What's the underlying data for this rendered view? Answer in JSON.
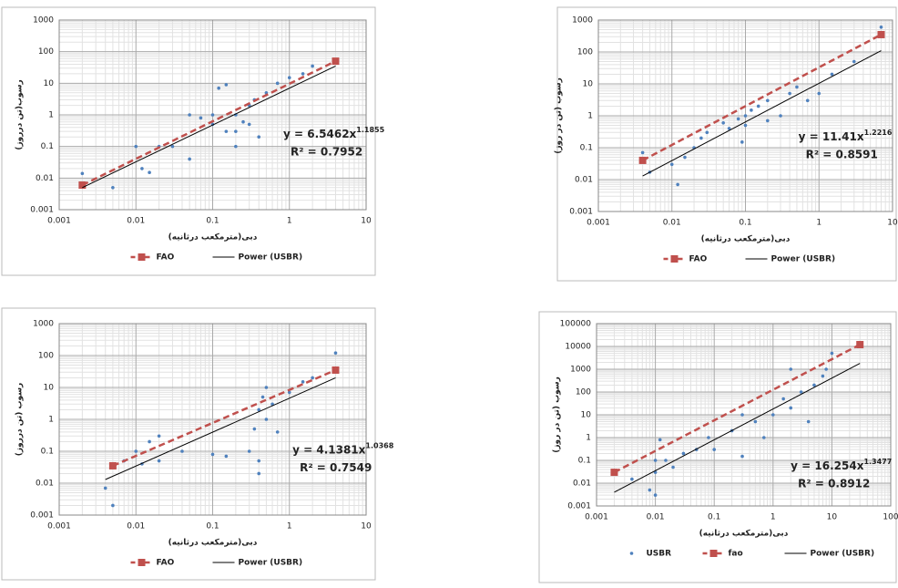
{
  "chart_data": [
    {
      "type": "scatter",
      "log": true,
      "grid": true,
      "legend": "bottom",
      "xlabel": "دبی(مترمکعب درثانیه)",
      "ylabel": "رسوب(تن درروز)",
      "xlim": [
        0.001,
        10
      ],
      "ylim": [
        0.001,
        1000
      ],
      "xticks": [
        0.001,
        0.01,
        0.1,
        1,
        10
      ],
      "yticks": [
        0.001,
        0.01,
        0.1,
        1,
        10,
        100,
        1000
      ],
      "points": {
        "color": "#4f81bd",
        "x": [
          0.002,
          0.005,
          0.01,
          0.012,
          0.015,
          0.02,
          0.03,
          0.05,
          0.05,
          0.07,
          0.1,
          0.12,
          0.15,
          0.15,
          0.2,
          0.2,
          0.25,
          0.3,
          0.35,
          0.4,
          0.5,
          0.7,
          1,
          1.5,
          2,
          0.3,
          0.2,
          0.1
        ],
        "values": [
          0.014,
          0.005,
          0.1,
          0.02,
          0.015,
          0.1,
          0.1,
          0.04,
          1,
          0.8,
          0.5,
          7,
          9,
          0.3,
          0.1,
          1,
          0.6,
          2,
          3,
          0.2,
          5,
          10,
          15,
          20,
          35,
          0.5,
          0.3,
          1
        ]
      },
      "series": [
        {
          "name": "FAO",
          "color": "#c0504d",
          "dash": true,
          "marker": "square",
          "x": [
            0.002,
            4
          ],
          "values": [
            0.006,
            50
          ]
        },
        {
          "name": "Power (USBR)",
          "color": "#000000",
          "x": [
            0.002,
            4
          ],
          "values": [
            0.005,
            35
          ]
        }
      ],
      "equation": {
        "text": "y = 6.5462x",
        "exponent": "1.1855"
      },
      "r2": "R² = 0.7952"
    },
    {
      "type": "scatter",
      "log": true,
      "grid": true,
      "legend": "bottom",
      "xlabel": "دبی(مترمکعب درثانیه)",
      "ylabel": "رسوب (تن در روز)",
      "xlim": [
        0.001,
        10
      ],
      "ylim": [
        0.001,
        1000
      ],
      "xticks": [
        0.001,
        0.01,
        0.1,
        1,
        10
      ],
      "yticks": [
        0.001,
        0.01,
        0.1,
        1,
        10,
        100,
        1000
      ],
      "points": {
        "color": "#4f81bd",
        "x": [
          0.004,
          0.005,
          0.01,
          0.012,
          0.015,
          0.02,
          0.025,
          0.03,
          0.05,
          0.06,
          0.08,
          0.1,
          0.1,
          0.12,
          0.15,
          0.2,
          0.3,
          0.4,
          0.5,
          0.7,
          1,
          1.5,
          3,
          7,
          0.09,
          0.2
        ],
        "values": [
          0.07,
          0.017,
          0.03,
          0.007,
          0.05,
          0.1,
          0.2,
          0.3,
          0.6,
          0.4,
          0.8,
          1,
          0.5,
          1.5,
          2,
          3,
          1,
          5,
          8,
          3,
          5,
          20,
          50,
          600,
          0.15,
          0.7
        ]
      },
      "series": [
        {
          "name": "FAO",
          "color": "#c0504d",
          "dash": true,
          "marker": "square",
          "x": [
            0.004,
            7
          ],
          "values": [
            0.04,
            350
          ]
        },
        {
          "name": "Power (USBR)",
          "color": "#000000",
          "x": [
            0.004,
            7
          ],
          "values": [
            0.013,
            110
          ]
        }
      ],
      "equation": {
        "text": "y = 11.41x",
        "exponent": "1.2216"
      },
      "r2": "R² = 0.8591"
    },
    {
      "type": "scatter",
      "log": true,
      "grid": true,
      "legend": "bottom",
      "xlabel": "دبی(مترمکعب درثانیه)",
      "ylabel": "رسوب (تن درروز)",
      "xlim": [
        0.001,
        10
      ],
      "ylim": [
        0.001,
        1000
      ],
      "xticks": [
        0.001,
        0.01,
        0.1,
        1,
        10
      ],
      "yticks": [
        0.001,
        0.01,
        0.1,
        1,
        10,
        100,
        1000
      ],
      "points": {
        "color": "#4f81bd",
        "x": [
          0.004,
          0.005,
          0.007,
          0.01,
          0.012,
          0.015,
          0.02,
          0.02,
          0.04,
          0.1,
          0.15,
          0.3,
          0.35,
          0.4,
          0.4,
          0.45,
          0.5,
          0.5,
          0.6,
          0.7,
          1,
          1.5,
          2,
          4,
          0.4
        ],
        "values": [
          0.007,
          0.002,
          0.05,
          0.1,
          0.04,
          0.2,
          0.3,
          0.05,
          0.1,
          0.08,
          0.07,
          0.1,
          0.5,
          2,
          0.05,
          5,
          1,
          10,
          3,
          0.4,
          7,
          15,
          20,
          120,
          0.02
        ]
      },
      "series": [
        {
          "name": "FAO",
          "color": "#c0504d",
          "dash": true,
          "marker": "square",
          "x": [
            0.005,
            4
          ],
          "values": [
            0.035,
            35
          ]
        },
        {
          "name": "Power (USBR)",
          "color": "#000000",
          "x": [
            0.004,
            4
          ],
          "values": [
            0.013,
            20
          ]
        }
      ],
      "equation": {
        "text": "y = 4.1381x",
        "exponent": "1.0368"
      },
      "r2": "R² = 0.7549"
    },
    {
      "type": "scatter",
      "log": true,
      "grid": true,
      "legend": "bottom",
      "xlabel": "دبی(مترمکعب درثانیه)",
      "ylabel": "رسوب (تن در روز)",
      "xlim": [
        0.001,
        100
      ],
      "ylim": [
        0.001,
        100000
      ],
      "xticks": [
        0.001,
        0.01,
        0.1,
        1,
        10,
        100
      ],
      "yticks": [
        0.001,
        0.01,
        0.1,
        1,
        10,
        100,
        1000,
        10000,
        100000
      ],
      "points": {
        "name": "USBR",
        "color": "#4f81bd",
        "x": [
          0.004,
          0.008,
          0.01,
          0.01,
          0.012,
          0.015,
          0.02,
          0.03,
          0.05,
          0.08,
          0.1,
          0.2,
          0.3,
          0.5,
          0.7,
          1,
          1.5,
          2,
          3,
          4,
          5,
          7,
          10,
          8,
          2,
          0.3,
          0.01
        ],
        "values": [
          0.015,
          0.005,
          0.1,
          0.03,
          0.8,
          0.1,
          0.05,
          0.2,
          0.3,
          1,
          0.3,
          2,
          0.15,
          5,
          1,
          10,
          50,
          20,
          100,
          5,
          200,
          500,
          5000,
          1000,
          1000,
          10,
          0.003
        ]
      },
      "series": [
        {
          "name": "fao",
          "color": "#c0504d",
          "dash": true,
          "marker": "square",
          "x": [
            0.002,
            30
          ],
          "values": [
            0.03,
            12000
          ]
        },
        {
          "name": "Power (USBR)",
          "color": "#000000",
          "x": [
            0.002,
            30
          ],
          "values": [
            0.004,
            1800
          ]
        }
      ],
      "equation": {
        "text": "y = 16.254x",
        "exponent": "1.3477"
      },
      "r2": "R² = 0.8912"
    }
  ]
}
